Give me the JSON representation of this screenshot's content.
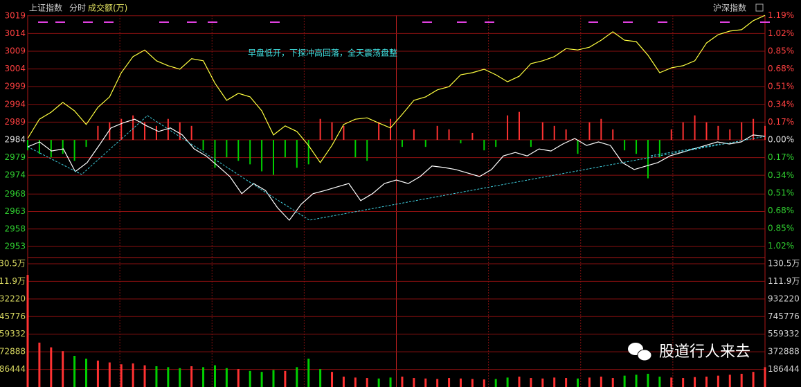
{
  "header": {
    "title": "上证指数",
    "mode": "分时",
    "indicator": "成交额(万)",
    "switch": "沪深指数"
  },
  "watermark": "股道行人来去",
  "chart_data": [
    {
      "type": "line",
      "annotation": "早盘低开，下探冲高回落，全天震荡盘整",
      "ylim": [
        2950.33,
        3021.62
      ],
      "yticks": [
        {
          "value": 3019.49,
          "label": "3019"
        },
        {
          "value": 3014.42,
          "label": "3014"
        },
        {
          "value": 3009.35,
          "label": "3009"
        },
        {
          "value": 3004.28,
          "label": "3004"
        },
        {
          "value": 2999.21,
          "label": "2999"
        },
        {
          "value": 2994.14,
          "label": "2994"
        },
        {
          "value": 2989.07,
          "label": "2989"
        },
        2984,
        {
          "value": 2978.93,
          "label": "2979"
        },
        {
          "value": 2973.86,
          "label": "2974"
        },
        {
          "value": 2968.49,
          "label": "2968"
        },
        {
          "value": 2963.49,
          "label": "2963"
        },
        {
          "value": 2958.49,
          "label": "2958"
        },
        {
          "value": 2953.49,
          "label": "2953"
        }
      ],
      "y2lim": [
        -1.128,
        1.261
      ],
      "y2ticks": [
        {
          "value": 1.19,
          "label": "1.19%"
        },
        {
          "value": 1.02,
          "label": "1.02%"
        },
        {
          "value": 0.85,
          "label": "0.85%"
        },
        {
          "value": 0.68,
          "label": "0.68%"
        },
        {
          "value": 0.51,
          "label": "0.51%"
        },
        {
          "value": 0.34,
          "label": "0.34%"
        },
        {
          "value": 0.17,
          "label": "0.17%"
        },
        {
          "value": 0,
          "label": "0.00%"
        },
        {
          "value": -0.17,
          "label": "0.17%"
        },
        {
          "value": -0.34,
          "label": "0.34%"
        },
        {
          "value": -0.51,
          "label": "0.51%"
        },
        {
          "value": -0.68,
          "label": "0.68%"
        },
        {
          "value": -0.85,
          "label": "0.85%"
        },
        {
          "value": -1.02,
          "label": "1.02%"
        }
      ],
      "grid": true,
      "up_color": "#ff3232",
      "down_color": "#00d000",
      "series": [
        {
          "color": "#ffff40",
          "values": [
            2984.4,
            2989.9,
            2991.9,
            2994.7,
            2992.3,
            2988.4,
            2993.3,
            2996.3,
            3003.2,
            3007.8,
            3009.7,
            3006.6,
            3005.2,
            3004.2,
            3007.2,
            3006.6,
            3000.2,
            2995.3,
            2997.3,
            2996.3,
            2992.3,
            2985.4,
            2988.0,
            2986.4,
            2982.4,
            2977.5,
            2982.4,
            2988.4,
            2989.9,
            2990.3,
            2988.8,
            2987.4,
            2991.3,
            2995.3,
            2996.3,
            2998.3,
            2999.2,
            3002.6,
            3003.2,
            3004.2,
            3002.6,
            3000.6,
            3002.2,
            3005.8,
            3006.6,
            3007.8,
            3010.1,
            3009.7,
            3010.5,
            3012.5,
            3014.9,
            3012.5,
            3012.1,
            3008.2,
            3003.2,
            3004.6,
            3005.2,
            3006.6,
            3011.7,
            3014.1,
            3015.1,
            3015.5,
            3018.1,
            3019.6
          ]
        },
        {
          "color": "#ffffff",
          "values": [
            2982.0,
            2983.4,
            2980.8,
            2981.4,
            2974.9,
            2977.5,
            2982.4,
            2987.4,
            2988.8,
            2989.9,
            2988.0,
            2986.4,
            2987.4,
            2985.4,
            2981.4,
            2979.4,
            2976.5,
            2973.5,
            2968.6,
            2971.5,
            2969.5,
            2964.6,
            2961.0,
            2965.6,
            2968.6,
            2969.5,
            2970.5,
            2971.5,
            2966.6,
            2968.6,
            2971.5,
            2972.5,
            2971.5,
            2973.5,
            2976.5,
            2976.1,
            2975.5,
            2974.5,
            2973.5,
            2975.5,
            2979.4,
            2980.4,
            2979.4,
            2981.4,
            2980.8,
            2982.8,
            2984.4,
            2982.4,
            2983.4,
            2982.4,
            2977.5,
            2975.5,
            2976.5,
            2977.5,
            2979.4,
            2980.4,
            2981.4,
            2982.4,
            2983.4,
            2982.8,
            2983.4,
            2985.4,
            2985.0
          ]
        }
      ],
      "bars": {
        "values": [
          -3,
          -4,
          -5,
          -4,
          -6,
          -2,
          4,
          5,
          6,
          7,
          5,
          4,
          6,
          5,
          4,
          -3,
          -8,
          -5,
          -6,
          -7,
          -9,
          -10,
          -5,
          -8,
          -7,
          6,
          5,
          4,
          -5,
          -6,
          5,
          6,
          -2,
          3,
          -2,
          4,
          3,
          -1,
          2,
          -3,
          -2,
          7,
          8,
          -2,
          5,
          4,
          3,
          -4,
          5,
          6,
          3,
          -3,
          -4,
          -11,
          -5,
          3,
          5,
          7,
          5,
          4,
          3,
          5,
          6,
          4
        ]
      }
    },
    {
      "type": "bar",
      "ylim": [
        0,
        1305108
      ],
      "yticks": [
        {
          "value": 1305108,
          "label": "130.5万"
        },
        {
          "value": 1118664,
          "label": "111.9万"
        },
        932220,
        745776,
        559332,
        372888,
        186444
      ],
      "grid": true,
      "values": [
        1187000,
        470000,
        420000,
        380000,
        330000,
        300000,
        280000,
        260000,
        240000,
        250000,
        230000,
        220000,
        210000,
        200000,
        220000,
        210000,
        230000,
        200000,
        190000,
        170000,
        160000,
        180000,
        170000,
        210000,
        300000,
        190000,
        160000,
        110000,
        100000,
        95000,
        90000,
        100000,
        110000,
        95000,
        90000,
        85000,
        95000,
        90000,
        85000,
        80000,
        85000,
        100000,
        110000,
        95000,
        90000,
        100000,
        95000,
        90000,
        100000,
        110000,
        95000,
        120000,
        130000,
        140000,
        110000,
        100000,
        95000,
        105000,
        110000,
        120000,
        130000,
        140000,
        160000,
        210000
      ]
    }
  ]
}
